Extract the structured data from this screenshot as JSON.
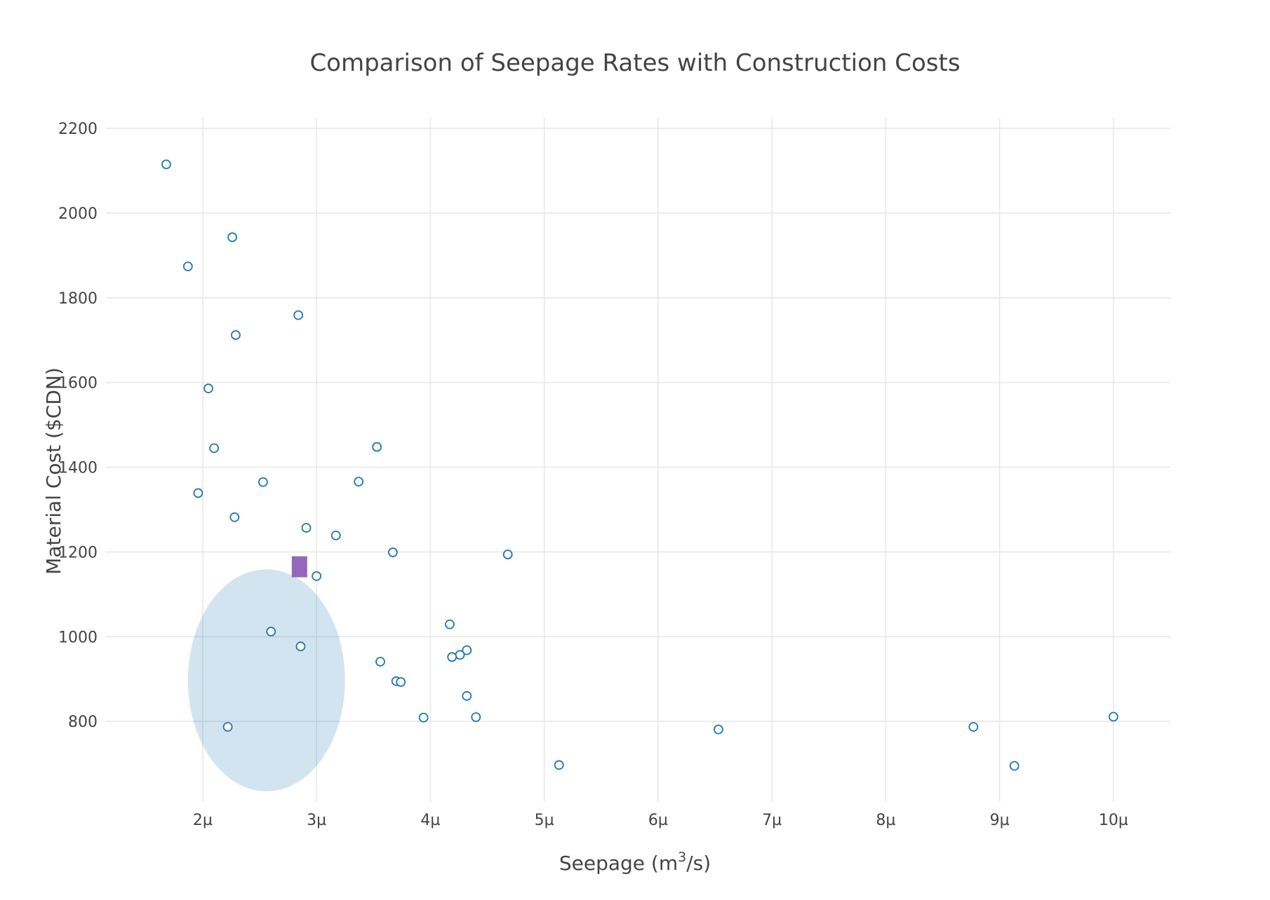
{
  "chart_data": {
    "type": "scatter",
    "title": "Comparison of Seepage Rates with Construction Costs",
    "xlabel_base": "Seepage (m",
    "xlabel_sup": "3",
    "xlabel_tail": "/s)",
    "ylabel": "Material Cost ($CDN)",
    "xlim": [
      1.15,
      10.5
    ],
    "ylim": [
      610,
      2225
    ],
    "x_ticks": [
      2,
      3,
      4,
      5,
      6,
      7,
      8,
      9,
      10
    ],
    "x_tick_labels": [
      "2µ",
      "3µ",
      "4µ",
      "5µ",
      "6µ",
      "7µ",
      "8µ",
      "9µ",
      "10µ"
    ],
    "y_ticks": [
      800,
      1000,
      1200,
      1400,
      1600,
      1800,
      2000,
      2200
    ],
    "y_tick_labels": [
      "800",
      "1000",
      "1200",
      "1400",
      "1600",
      "1800",
      "2000",
      "2200"
    ],
    "x_unit_note": "x values in micro (1e-6) m3/s",
    "grid": true,
    "colors": {
      "points": "#1f77b4",
      "highlight": "#9467bd",
      "ellipse": "#1f77b4"
    },
    "points": [
      {
        "x": 1.68,
        "y": 2115
      },
      {
        "x": 2.26,
        "y": 1943
      },
      {
        "x": 1.87,
        "y": 1874
      },
      {
        "x": 2.84,
        "y": 1759
      },
      {
        "x": 2.29,
        "y": 1712
      },
      {
        "x": 2.05,
        "y": 1586
      },
      {
        "x": 2.1,
        "y": 1445
      },
      {
        "x": 3.53,
        "y": 1448
      },
      {
        "x": 1.96,
        "y": 1339
      },
      {
        "x": 2.53,
        "y": 1365
      },
      {
        "x": 3.37,
        "y": 1366
      },
      {
        "x": 2.28,
        "y": 1282
      },
      {
        "x": 2.91,
        "y": 1257
      },
      {
        "x": 3.17,
        "y": 1239
      },
      {
        "x": 3.67,
        "y": 1199
      },
      {
        "x": 4.68,
        "y": 1194
      },
      {
        "x": 3.0,
        "y": 1143
      },
      {
        "x": 4.17,
        "y": 1029
      },
      {
        "x": 2.6,
        "y": 1012
      },
      {
        "x": 2.86,
        "y": 977
      },
      {
        "x": 4.32,
        "y": 968
      },
      {
        "x": 4.26,
        "y": 957
      },
      {
        "x": 4.19,
        "y": 952
      },
      {
        "x": 3.56,
        "y": 941
      },
      {
        "x": 3.7,
        "y": 895
      },
      {
        "x": 3.74,
        "y": 893
      },
      {
        "x": 4.32,
        "y": 860
      },
      {
        "x": 3.94,
        "y": 809
      },
      {
        "x": 4.4,
        "y": 810
      },
      {
        "x": 2.22,
        "y": 787
      },
      {
        "x": 6.53,
        "y": 781
      },
      {
        "x": 8.77,
        "y": 787
      },
      {
        "x": 10.0,
        "y": 811
      },
      {
        "x": 5.13,
        "y": 697
      },
      {
        "x": 9.13,
        "y": 695
      }
    ],
    "highlight_marker": {
      "x": 2.85,
      "y": 1165,
      "shape": "square"
    },
    "ellipse_region": {
      "cx": 2.56,
      "cy": 897,
      "rx": 0.69,
      "ry": 262
    }
  }
}
